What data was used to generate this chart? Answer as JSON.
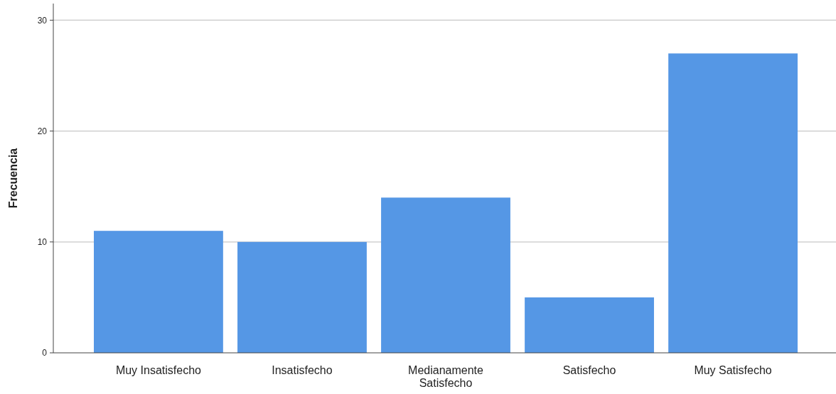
{
  "chart_data": {
    "type": "bar",
    "ylabel": "Frecuencia",
    "categories": [
      "Muy Insatisfecho",
      "Insatisfecho",
      "Medianamente Satisfecho",
      "Satisfecho",
      "Muy Satisfecho"
    ],
    "values": [
      11,
      10,
      14,
      5,
      27
    ],
    "color": "#5597e5",
    "ylim": [
      0,
      31.5
    ],
    "yticks": [
      0,
      10,
      20,
      30
    ],
    "grid": "y"
  }
}
